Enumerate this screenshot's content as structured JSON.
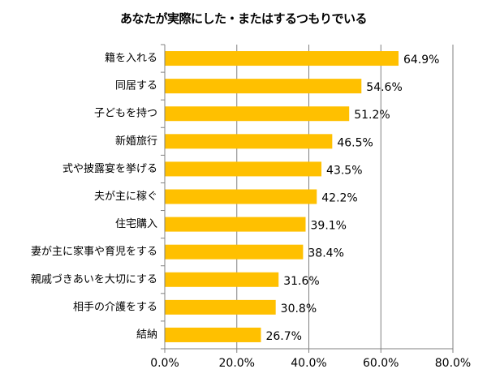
{
  "chart_data": {
    "type": "bar",
    "orientation": "horizontal",
    "title": "あなたが実際にした・またはするつもりでいる",
    "xlabel": "",
    "ylabel": "",
    "categories": [
      "籍を入れる",
      "同居する",
      "子どもを持つ",
      "新婚旅行",
      "式や披露宴を挙げる",
      "夫が主に稼ぐ",
      "住宅購入",
      "妻が主に家事や育児をする",
      "親戚づきあいを大切にする",
      "相手の介護をする",
      "結納"
    ],
    "values": [
      64.9,
      54.6,
      51.2,
      46.5,
      43.5,
      42.2,
      39.1,
      38.4,
      31.6,
      30.8,
      26.7
    ],
    "value_labels": [
      "64.9%",
      "54.6%",
      "51.2%",
      "46.5%",
      "43.5%",
      "42.2%",
      "39.1%",
      "38.4%",
      "31.6%",
      "30.8%",
      "26.7%"
    ],
    "xlim": [
      0,
      80
    ],
    "xticks": [
      0,
      20,
      40,
      60,
      80
    ],
    "xtick_labels": [
      "0.0%",
      "20.0%",
      "40.0%",
      "60.0%",
      "80.0%"
    ],
    "grid": "vertical",
    "legend": "none",
    "colors": {
      "bar": "#FFC000",
      "grid": "#808080",
      "axis": "#808080"
    }
  }
}
